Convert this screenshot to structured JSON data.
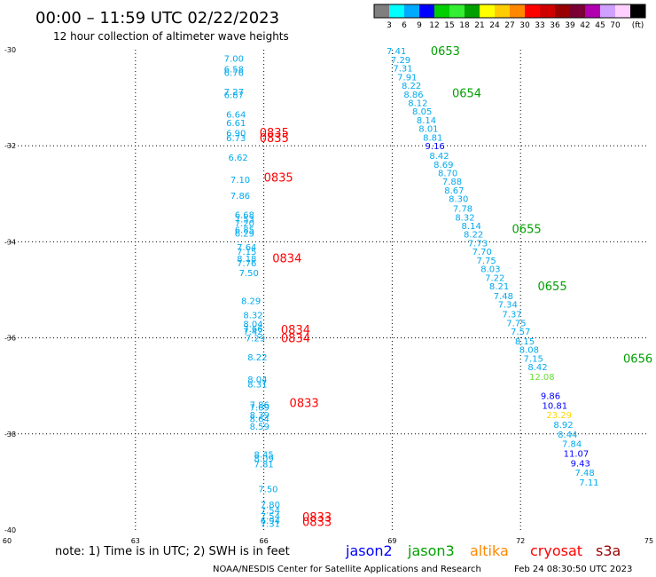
{
  "header": {
    "title": "00:00 – 11:59 UTC 02/22/2023",
    "subtitle": "12 hour collection of altimeter wave heights"
  },
  "colorbar": {
    "colors": [
      "#7f7f7f",
      "#00ffff",
      "#00aaff",
      "#0000ff",
      "#00d000",
      "#33ee33",
      "#00a000",
      "#ffff00",
      "#ffcc00",
      "#ff8800",
      "#ff0000",
      "#d00000",
      "#990000",
      "#7b0033",
      "#b000b0",
      "#d0a0ff",
      "#ffd0ff",
      "#000000"
    ],
    "ticks": [
      "3",
      "6",
      "9",
      "12",
      "15",
      "18",
      "21",
      "24",
      "27",
      "30",
      "33",
      "36",
      "39",
      "42",
      "45",
      "70",
      "(ft)"
    ]
  },
  "footer": {
    "note": "note:  1) Time is in UTC;  2) SWH is in feet",
    "credit": "NOAA/NESDIS Center for Satellite Applications and Research",
    "timestamp": "Feb 24 08:30:50 UTC 2023"
  },
  "chart_data": {
    "type": "scatter",
    "xlim": [
      60,
      75
    ],
    "ylim": [
      -40,
      -30
    ],
    "x_ticks": [
      "60",
      "63",
      "66",
      "69",
      "72",
      "75"
    ],
    "y_ticks": [
      "-30",
      "-32",
      "-34",
      "-36",
      "-38",
      "-40"
    ],
    "grid": true,
    "legend": {
      "placement": "bottom",
      "entries": [
        {
          "name": "jason2",
          "color": "#0000ff"
        },
        {
          "name": "jason3",
          "color": "#00a000"
        },
        {
          "name": "altika",
          "color": "#ff8800"
        },
        {
          "name": "cryosat",
          "color": "#ff0000"
        },
        {
          "name": "s3a",
          "color": "#990000"
        }
      ]
    },
    "series": [
      {
        "name": "cryosat",
        "color": "#ff0000",
        "time_labels": [
          {
            "x": 65.9,
            "y": -31.72,
            "text": "0835"
          },
          {
            "x": 65.9,
            "y": -31.83,
            "text": "0835"
          },
          {
            "x": 66.0,
            "y": -32.65,
            "text": "0835"
          },
          {
            "x": 66.2,
            "y": -34.33,
            "text": "0834"
          },
          {
            "x": 66.4,
            "y": -35.82,
            "text": "0834"
          },
          {
            "x": 66.4,
            "y": -36.0,
            "text": "0834"
          },
          {
            "x": 66.6,
            "y": -37.35,
            "text": "0833"
          },
          {
            "x": 66.9,
            "y": -39.72,
            "text": "0833"
          },
          {
            "x": 66.9,
            "y": -39.82,
            "text": "0833"
          }
        ],
        "points": [
          {
            "x": 65.3,
            "y": -30.18,
            "swh": 7.0
          },
          {
            "x": 65.3,
            "y": -30.4,
            "swh": 6.58
          },
          {
            "x": 65.3,
            "y": -30.47,
            "swh": 6.76
          },
          {
            "x": 65.3,
            "y": -30.87,
            "swh": 7.27
          },
          {
            "x": 65.3,
            "y": -30.93,
            "swh": 6.87
          },
          {
            "x": 65.35,
            "y": -31.34,
            "swh": 6.64
          },
          {
            "x": 65.35,
            "y": -31.52,
            "swh": 6.61
          },
          {
            "x": 65.35,
            "y": -31.73,
            "swh": 6.9
          },
          {
            "x": 65.35,
            "y": -31.83,
            "swh": 6.73
          },
          {
            "x": 65.4,
            "y": -32.24,
            "swh": 6.62
          },
          {
            "x": 65.45,
            "y": -32.7,
            "swh": 7.1
          },
          {
            "x": 65.45,
            "y": -33.03,
            "swh": 7.86
          },
          {
            "x": 65.55,
            "y": -33.43,
            "swh": 6.68
          },
          {
            "x": 65.55,
            "y": -33.52,
            "swh": 7.53
          },
          {
            "x": 65.55,
            "y": -33.6,
            "swh": 7.2
          },
          {
            "x": 65.55,
            "y": -33.74,
            "swh": 6.85
          },
          {
            "x": 65.55,
            "y": -33.82,
            "swh": 6.29
          },
          {
            "x": 65.6,
            "y": -34.1,
            "swh": 7.64
          },
          {
            "x": 65.6,
            "y": -34.2,
            "swh": 7.15
          },
          {
            "x": 65.6,
            "y": -34.34,
            "swh": 8.18
          },
          {
            "x": 65.6,
            "y": -34.44,
            "swh": 7.76
          },
          {
            "x": 65.65,
            "y": -34.64,
            "swh": 7.5
          },
          {
            "x": 65.7,
            "y": -35.22,
            "swh": 8.29
          },
          {
            "x": 65.75,
            "y": -35.52,
            "swh": 8.32
          },
          {
            "x": 65.75,
            "y": -35.7,
            "swh": 8.04
          },
          {
            "x": 65.75,
            "y": -35.8,
            "swh": 7.66
          },
          {
            "x": 65.75,
            "y": -35.86,
            "swh": 7.42
          },
          {
            "x": 65.8,
            "y": -36.0,
            "swh": 7.29
          },
          {
            "x": 65.85,
            "y": -36.4,
            "swh": 8.22
          },
          {
            "x": 65.85,
            "y": -36.86,
            "swh": 8.04
          },
          {
            "x": 65.85,
            "y": -36.96,
            "swh": 8.31
          },
          {
            "x": 65.9,
            "y": -37.38,
            "swh": 7.86
          },
          {
            "x": 65.9,
            "y": -37.44,
            "swh": 7.69
          },
          {
            "x": 65.9,
            "y": -37.6,
            "swh": 8.39
          },
          {
            "x": 65.9,
            "y": -37.68,
            "swh": 8.64
          },
          {
            "x": 65.9,
            "y": -37.84,
            "swh": 8.59
          },
          {
            "x": 66.0,
            "y": -38.42,
            "swh": 8.45
          },
          {
            "x": 66.0,
            "y": -38.5,
            "swh": 8.09
          },
          {
            "x": 66.0,
            "y": -38.62,
            "swh": 7.81
          },
          {
            "x": 66.1,
            "y": -39.14,
            "swh": 7.5
          },
          {
            "x": 66.15,
            "y": -39.46,
            "swh": 7.8
          },
          {
            "x": 66.15,
            "y": -39.58,
            "swh": 7.54
          },
          {
            "x": 66.15,
            "y": -39.7,
            "swh": 7.54
          },
          {
            "x": 66.15,
            "y": -39.8,
            "swh": 6.94
          },
          {
            "x": 66.15,
            "y": -39.86,
            "swh": 7.31
          }
        ]
      },
      {
        "name": "jason3",
        "color": "#00a000",
        "time_labels": [
          {
            "x": 69.9,
            "y": -30.02,
            "text": "0653"
          },
          {
            "x": 70.4,
            "y": -30.9,
            "text": "0654"
          },
          {
            "x": 71.8,
            "y": -33.72,
            "text": "0655"
          },
          {
            "x": 72.4,
            "y": -34.92,
            "text": "0655"
          },
          {
            "x": 74.4,
            "y": -36.42,
            "text": "0656"
          }
        ],
        "points": [
          {
            "x": 69.1,
            "y": -30.02,
            "swh": 7.41
          },
          {
            "x": 69.2,
            "y": -30.2,
            "swh": 7.29
          },
          {
            "x": 69.25,
            "y": -30.38,
            "swh": 7.31
          },
          {
            "x": 69.35,
            "y": -30.56,
            "swh": 7.91
          },
          {
            "x": 69.45,
            "y": -30.74,
            "swh": 8.22
          },
          {
            "x": 69.5,
            "y": -30.92,
            "swh": 8.86
          },
          {
            "x": 69.6,
            "y": -31.1,
            "swh": 8.12
          },
          {
            "x": 69.7,
            "y": -31.28,
            "swh": 8.05
          },
          {
            "x": 69.8,
            "y": -31.46,
            "swh": 8.14
          },
          {
            "x": 69.85,
            "y": -31.64,
            "swh": 8.01
          },
          {
            "x": 69.95,
            "y": -31.82,
            "swh": 8.81
          },
          {
            "x": 70.0,
            "y": -32.0,
            "swh": 9.16
          },
          {
            "x": 70.1,
            "y": -32.2,
            "swh": 8.42
          },
          {
            "x": 70.2,
            "y": -32.38,
            "swh": 8.69
          },
          {
            "x": 70.3,
            "y": -32.56,
            "swh": 8.7
          },
          {
            "x": 70.4,
            "y": -32.74,
            "swh": 7.88
          },
          {
            "x": 70.45,
            "y": -32.92,
            "swh": 8.67
          },
          {
            "x": 70.55,
            "y": -33.1,
            "swh": 8.3
          },
          {
            "x": 70.65,
            "y": -33.3,
            "swh": 7.78
          },
          {
            "x": 70.7,
            "y": -33.48,
            "swh": 8.32
          },
          {
            "x": 70.85,
            "y": -33.66,
            "swh": 8.14
          },
          {
            "x": 70.9,
            "y": -33.84,
            "swh": 8.22
          },
          {
            "x": 71.0,
            "y": -34.02,
            "swh": 7.73
          },
          {
            "x": 71.1,
            "y": -34.2,
            "swh": 7.7
          },
          {
            "x": 71.2,
            "y": -34.38,
            "swh": 7.75
          },
          {
            "x": 71.3,
            "y": -34.56,
            "swh": 8.03
          },
          {
            "x": 71.4,
            "y": -34.74,
            "swh": 7.22
          },
          {
            "x": 71.5,
            "y": -34.92,
            "swh": 8.21
          },
          {
            "x": 71.6,
            "y": -35.12,
            "swh": 7.48
          },
          {
            "x": 71.7,
            "y": -35.3,
            "swh": 7.34
          },
          {
            "x": 71.8,
            "y": -35.5,
            "swh": 7.37
          },
          {
            "x": 71.9,
            "y": -35.68,
            "swh": 7.75
          },
          {
            "x": 72.0,
            "y": -35.86,
            "swh": 7.57
          },
          {
            "x": 72.1,
            "y": -36.06,
            "swh": 8.15
          },
          {
            "x": 72.2,
            "y": -36.24,
            "swh": 8.08
          },
          {
            "x": 72.3,
            "y": -36.42,
            "swh": 7.15
          },
          {
            "x": 72.4,
            "y": -36.6,
            "swh": 8.42
          },
          {
            "x": 72.5,
            "y": -36.8,
            "swh": 12.08
          },
          {
            "x": 72.7,
            "y": -37.2,
            "swh": 9.86
          },
          {
            "x": 72.8,
            "y": -37.4,
            "swh": 10.81
          },
          {
            "x": 72.9,
            "y": -37.6,
            "swh": 23.29
          },
          {
            "x": 73.0,
            "y": -37.8,
            "swh": 8.92
          },
          {
            "x": 73.1,
            "y": -38.0,
            "swh": 8.44
          },
          {
            "x": 73.2,
            "y": -38.2,
            "swh": 7.84
          },
          {
            "x": 73.3,
            "y": -38.4,
            "swh": 11.07
          },
          {
            "x": 73.4,
            "y": -38.6,
            "swh": 9.43
          },
          {
            "x": 73.5,
            "y": -38.8,
            "swh": 7.48
          },
          {
            "x": 73.6,
            "y": -39.0,
            "swh": 7.11
          }
        ]
      }
    ]
  }
}
